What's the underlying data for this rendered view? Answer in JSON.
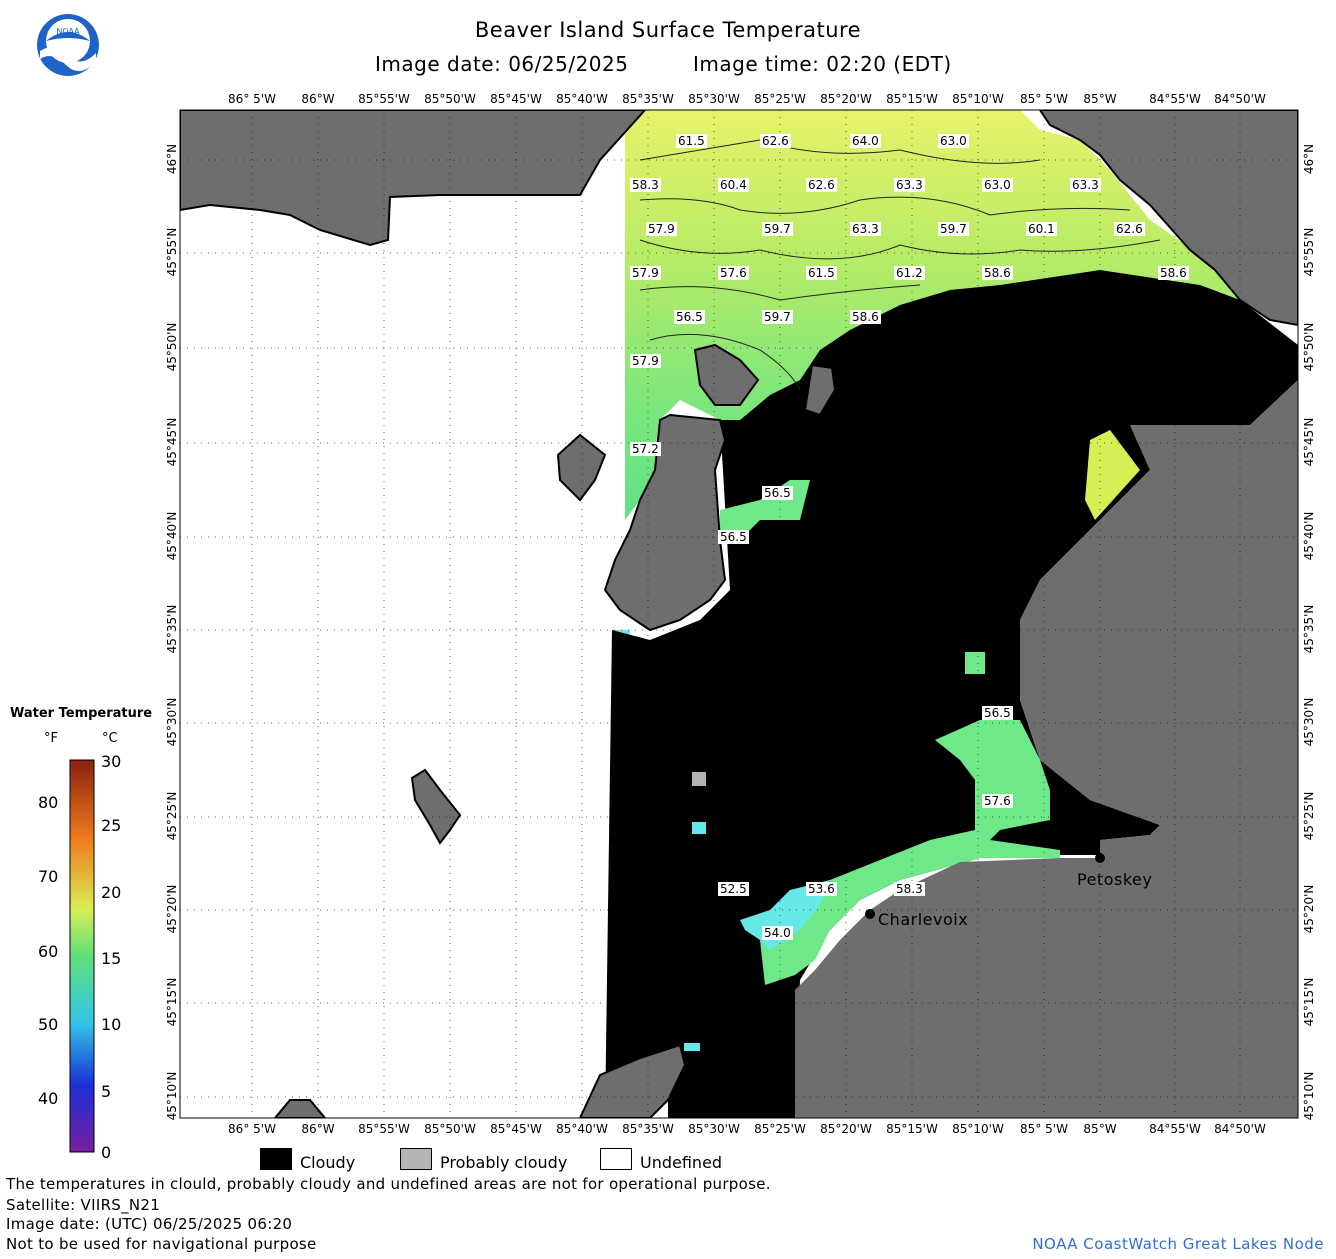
{
  "header": {
    "title": "Beaver Island Surface Temperature",
    "image_date": "Image date: 06/25/2025",
    "image_time": "Image time: 02:20 (EDT)"
  },
  "logo": {
    "text": "NOAA",
    "icon": "noaa-logo-icon"
  },
  "axes": {
    "lon_ticks": [
      "86° 5'W",
      "86°W",
      "85°55'W",
      "85°50'W",
      "85°45'W",
      "85°40'W",
      "85°35'W",
      "85°30'W",
      "85°25'W",
      "85°20'W",
      "85°15'W",
      "85°10'W",
      "85° 5'W",
      "85°W",
      "84°55'W",
      "84°50'W"
    ],
    "lat_ticks": [
      "46°N",
      "45°55'N",
      "45°50'N",
      "45°45'N",
      "45°40'N",
      "45°35'N",
      "45°30'N",
      "45°25'N",
      "45°20'N",
      "45°15'N",
      "45°10'N"
    ],
    "grid": true
  },
  "sst_labels": [
    "61.5",
    "62.6",
    "64.0",
    "63.0",
    "58.3",
    "60.4",
    "62.6",
    "63.3",
    "63.0",
    "63.3",
    "57.9",
    "59.7",
    "63.3",
    "59.7",
    "60.1",
    "62.6",
    "57.9",
    "57.6",
    "61.5",
    "61.2",
    "58.6",
    "58.6",
    "56.5",
    "59.7",
    "58.6",
    "57.9",
    "57.2",
    "56.5",
    "56.5",
    "56.5",
    "57.6",
    "52.5",
    "53.6",
    "58.3",
    "54.0"
  ],
  "cities": [
    {
      "name": "Charlevoix"
    },
    {
      "name": "Petoskey"
    }
  ],
  "color_scale": {
    "title": "Water Temperature",
    "unit_f": "°F",
    "unit_c": "°C",
    "f_ticks": [
      "80",
      "70",
      "60",
      "50",
      "40"
    ],
    "c_ticks": [
      "30",
      "25",
      "20",
      "15",
      "10",
      "5",
      "0"
    ],
    "colors": [
      "#7a1fa0",
      "#1a2fd6",
      "#1f7be0",
      "#33c6e6",
      "#4fe0a0",
      "#5fe07a",
      "#d8ee55",
      "#f5d94a",
      "#f07a1a",
      "#c0301a",
      "#8a2010"
    ]
  },
  "legend": {
    "cloudy": "Cloudy",
    "probably_cloudy": "Probably cloudy",
    "undefined": "Undefined",
    "cloudy_color": "#000000",
    "probably_cloudy_color": "#b4b4b4",
    "undefined_color": "#ffffff",
    "land_color": "#6e6e6e"
  },
  "footer": {
    "line1": "The temperatures in clould, probably cloudy and undefined areas are not for operational purpose.",
    "line2": "Satellite: VIIRS_N21",
    "line3": "Image date: (UTC) 06/25/2025  06:20",
    "line4": "Not to be used for navigational purpose",
    "credit": "NOAA CoastWatch Great Lakes Node"
  }
}
